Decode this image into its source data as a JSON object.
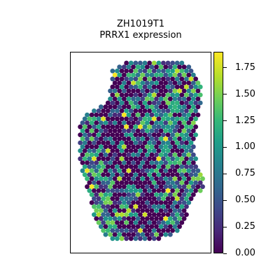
{
  "chart_data": {
    "type": "scatter",
    "subtype": "spatial hexbin expression map",
    "title": "ZH1019T1",
    "subtitle": "PRRX1 expression",
    "colormap": "viridis",
    "colorbar": {
      "range": [
        0.0,
        1.9
      ],
      "ticks": [
        0.0,
        0.25,
        0.5,
        0.75,
        1.0,
        1.25,
        1.5,
        1.75
      ],
      "tick_labels": [
        "0.00",
        "0.25",
        "0.50",
        "0.75",
        "1.00",
        "1.25",
        "1.50",
        "1.75"
      ]
    },
    "axes_visible": false,
    "grid": false,
    "value_distribution": {
      "description_note": "",
      "approx_fraction_zero": 0.35,
      "approx_median": 0.6,
      "max": 1.9
    }
  }
}
